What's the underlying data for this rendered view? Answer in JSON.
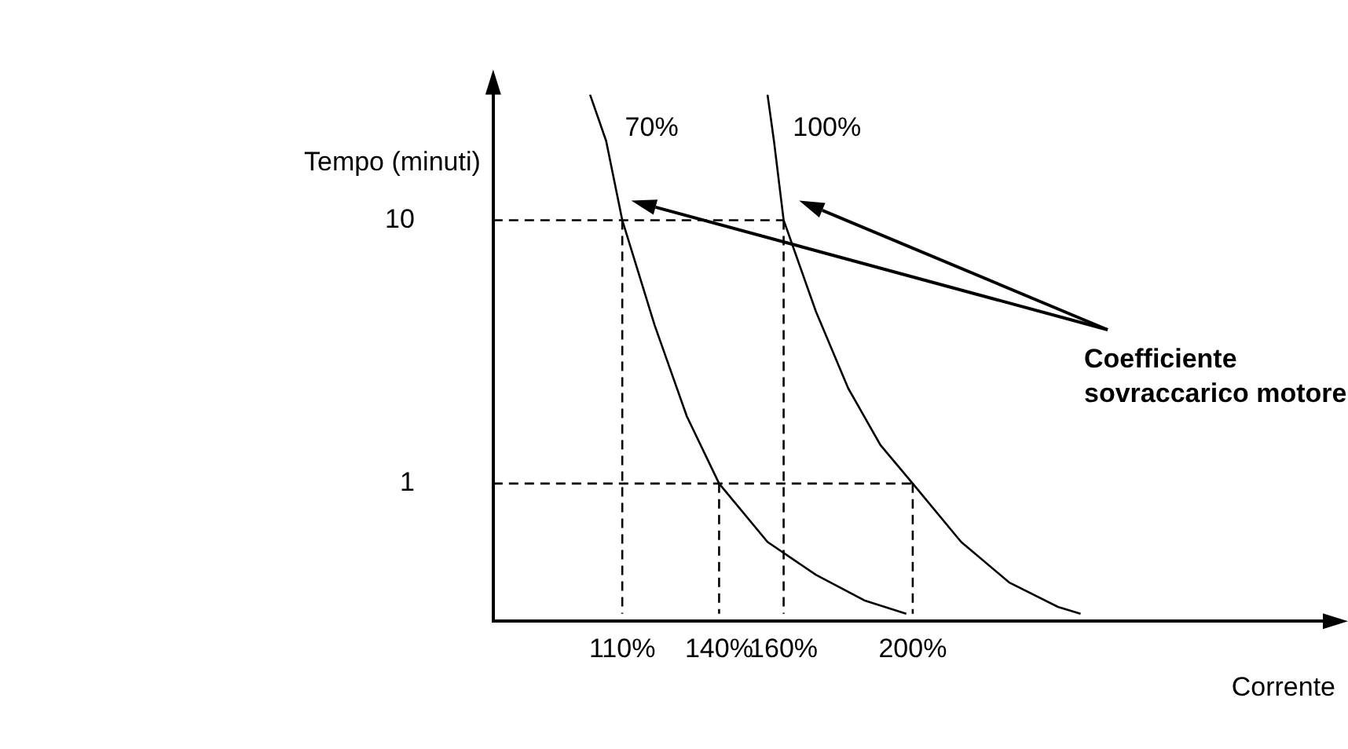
{
  "chart_data": {
    "type": "line",
    "xlabel": "Corrente",
    "ylabel": "Tempo (minuti)",
    "log": "y",
    "grid": false,
    "legend": false,
    "marker": "none",
    "xlim": [
      70,
      330
    ],
    "ylim": [
      0.32,
      30
    ],
    "xticks": [
      {
        "value": 110,
        "label": "110%"
      },
      {
        "value": 140,
        "label": "140%"
      },
      {
        "value": 160,
        "label": "160%"
      },
      {
        "value": 200,
        "label": "200%"
      }
    ],
    "yticks": [
      1,
      10
    ],
    "annotations": [
      "Coefficiente sovraccarico motore"
    ],
    "series": [
      {
        "name": "70%",
        "color": "#000000",
        "line_style": "solid",
        "x": [
          100,
          105,
          110,
          120,
          130,
          140,
          155,
          170,
          185,
          198
        ],
        "values": [
          30,
          20,
          10,
          4,
          1.8,
          1,
          0.6,
          0.45,
          0.36,
          0.32
        ]
      },
      {
        "name": "100%",
        "color": "#000000",
        "line_style": "solid",
        "x": [
          155,
          157,
          160,
          170,
          180,
          190,
          200,
          215,
          230,
          245,
          252
        ],
        "values": [
          30,
          20,
          10,
          4.5,
          2.3,
          1.4,
          1,
          0.6,
          0.42,
          0.34,
          0.32
        ]
      },
      {
        "color": "#000000",
        "line_style": "dashed",
        "x": [
          70,
          160
        ],
        "values": [
          10,
          10
        ]
      },
      {
        "color": "#000000",
        "line_style": "dashed",
        "x": [
          160,
          160
        ],
        "values": [
          10,
          0.32
        ]
      },
      {
        "color": "#000000",
        "line_style": "dashed",
        "x": [
          110,
          110
        ],
        "values": [
          10,
          0.32
        ]
      },
      {
        "color": "#000000",
        "line_style": "dashed",
        "x": [
          70,
          200
        ],
        "values": [
          1,
          1
        ]
      },
      {
        "color": "#000000",
        "line_style": "dashed",
        "x": [
          200,
          200
        ],
        "values": [
          1,
          0.32
        ]
      },
      {
        "color": "#000000",
        "line_style": "dashed",
        "x": [
          140,
          140
        ],
        "values": [
          1,
          0.32
        ]
      }
    ]
  }
}
